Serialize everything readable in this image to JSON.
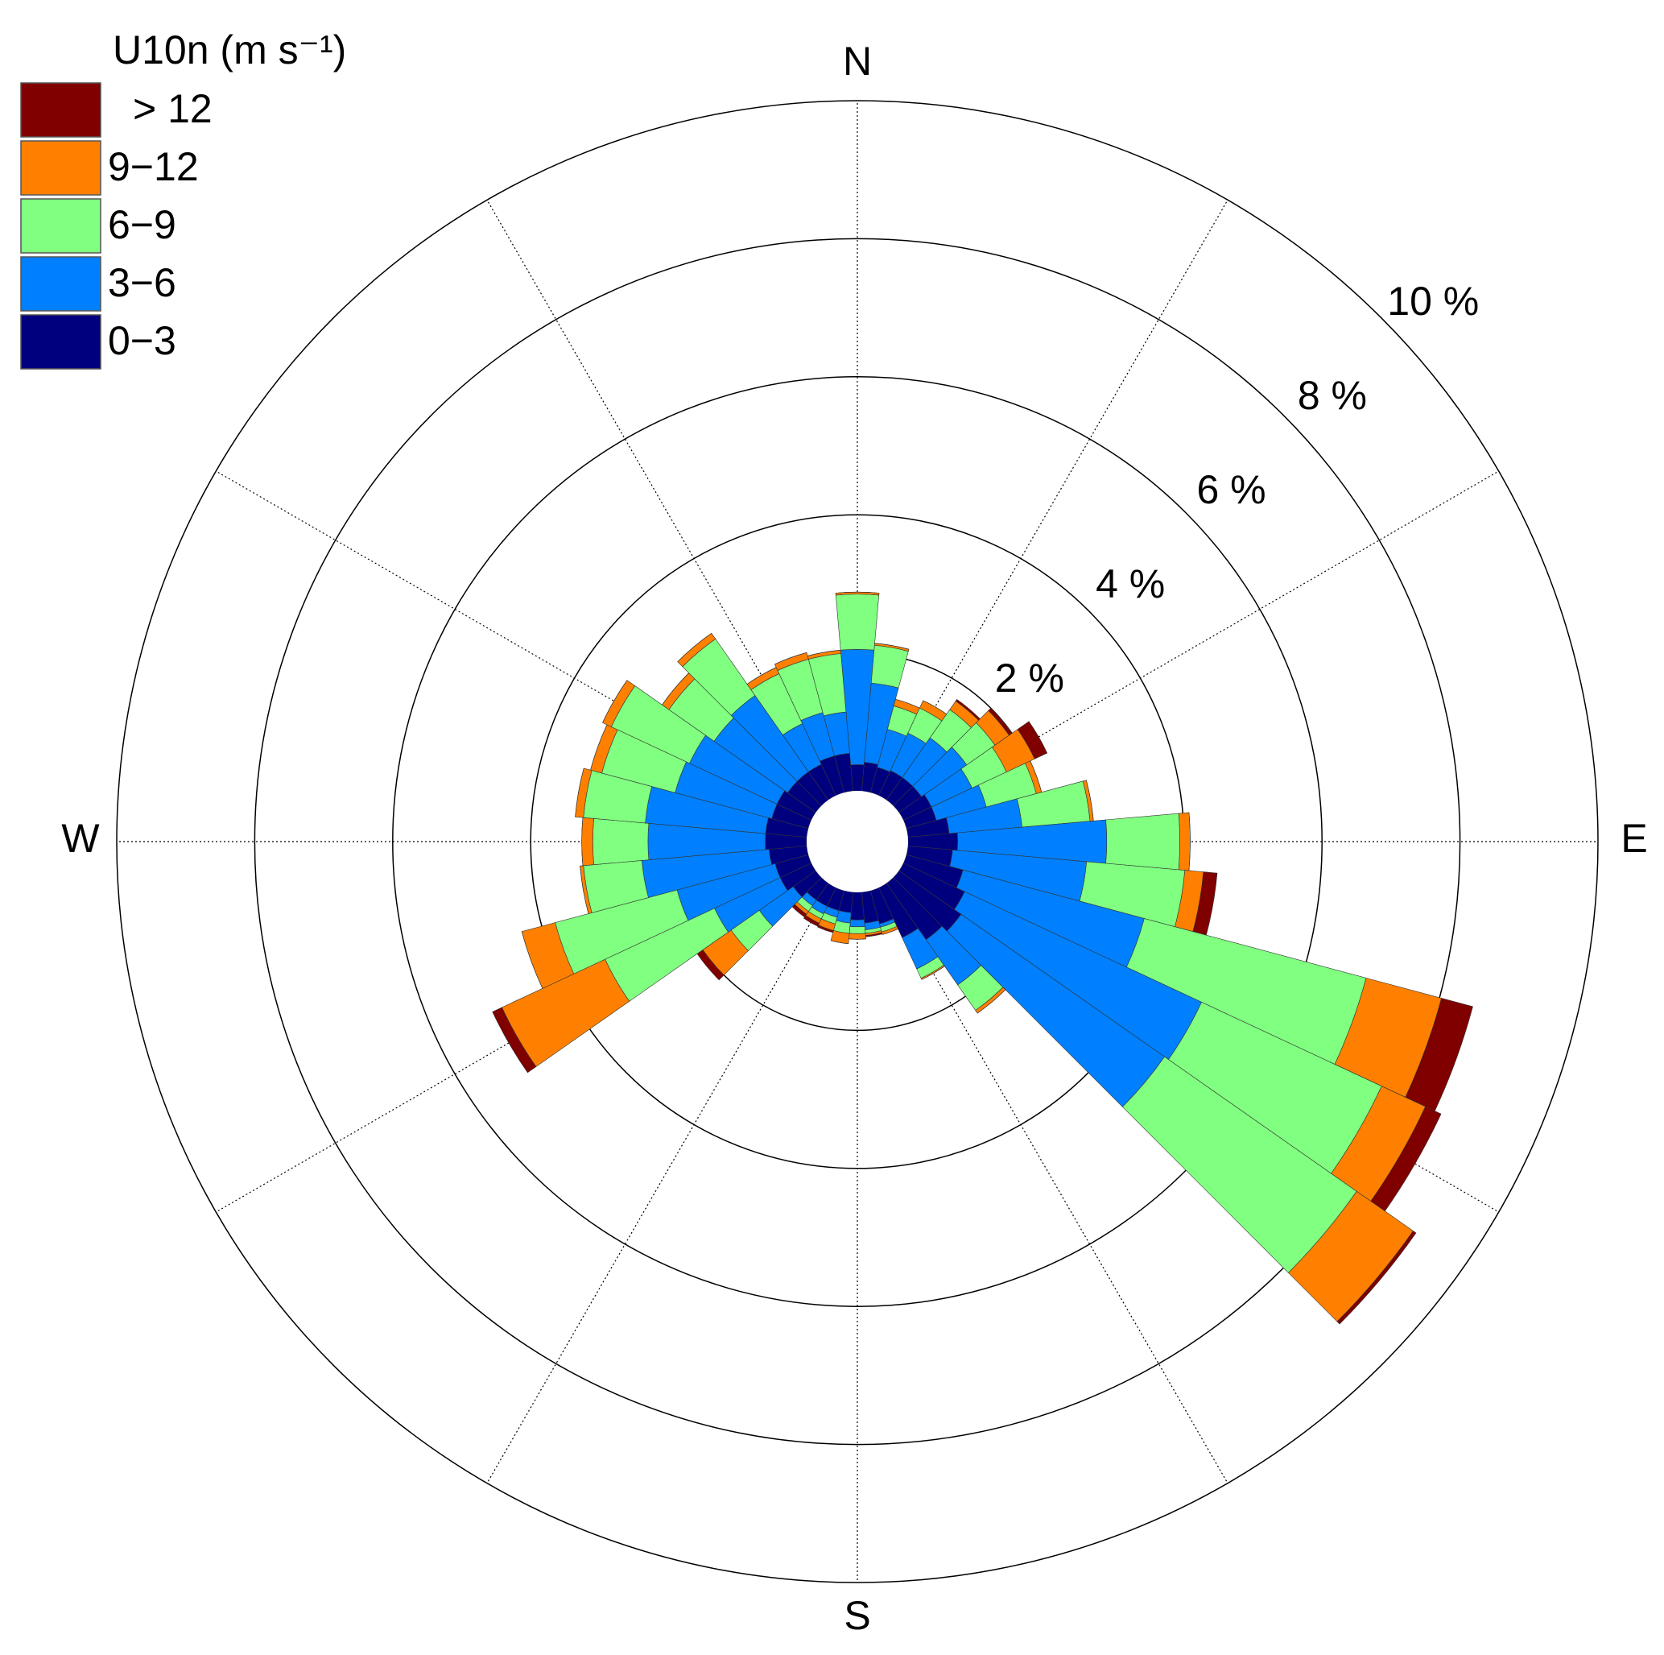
{
  "chart_data": {
    "type": "windrose",
    "legend_title": "U10n (m s⁻¹)",
    "legend": "upper left",
    "x": [
      0,
      10,
      20,
      30,
      40,
      50,
      60,
      70,
      80,
      90,
      100,
      110,
      120,
      130,
      140,
      150,
      160,
      170,
      180,
      190,
      200,
      210,
      220,
      230,
      240,
      250,
      260,
      270,
      280,
      290,
      300,
      310,
      320,
      330,
      340,
      350
    ],
    "series": [
      {
        "name": "0−3",
        "color": "#00007f",
        "values": [
          0.38,
          0.42,
          0.38,
          0.4,
          0.4,
          0.4,
          0.45,
          0.45,
          0.6,
          0.72,
          0.65,
          0.85,
          0.98,
          1.1,
          1.0,
          0.8,
          0.5,
          0.45,
          0.4,
          0.3,
          0.3,
          0.3,
          0.3,
          0.4,
          0.5,
          0.5,
          0.55,
          0.6,
          0.6,
          0.55,
          0.55,
          0.5,
          0.5,
          0.5,
          0.55,
          0.55
        ]
      },
      {
        "name": "3−6",
        "color": "#0080ff",
        "values": [
          1.67,
          1.15,
          0.57,
          0.6,
          0.7,
          0.8,
          0.65,
          0.75,
          1.06,
          2.16,
          1.95,
          2.72,
          3.79,
          3.6,
          0.8,
          0.5,
          0.05,
          0.1,
          0.1,
          0.15,
          0.1,
          0.12,
          0.1,
          0.6,
          1.05,
          1.47,
          1.85,
          1.7,
          1.75,
          1.45,
          1.4,
          1.3,
          1.35,
          0.65,
          0.65,
          0.6
        ]
      },
      {
        "name": "6−9",
        "color": "#80ff80",
        "values": [
          0.8,
          0.55,
          0.35,
          0.4,
          0.5,
          0.5,
          0.55,
          0.75,
          0.99,
          1.06,
          1.43,
          3.33,
          2.88,
          3.4,
          0.45,
          0.15,
          0.07,
          0.05,
          0.1,
          0.15,
          0.1,
          0.08,
          0.1,
          0.5,
          1.75,
          1.83,
          0.85,
          0.8,
          0.9,
          1.1,
          1.25,
          0.8,
          1.0,
          0.8,
          0.8,
          0.85
        ]
      },
      {
        "name": "9−12",
        "color": "#ff8000",
        "values": [
          0.03,
          0.03,
          0.1,
          0.12,
          0.15,
          0.25,
          0.45,
          0.08,
          0.05,
          0.15,
          0.27,
          1.13,
          0.7,
          1.0,
          0.05,
          0.02,
          0.04,
          0.03,
          0.08,
          0.15,
          0.1,
          0.07,
          0.05,
          0.5,
          1.65,
          0.5,
          0.05,
          0.16,
          0.12,
          0.17,
          0.14,
          0.12,
          0.1,
          0.1,
          0.1,
          0.05
        ]
      },
      {
        "name": "> 12",
        "color": "#800000",
        "values": [
          0,
          0,
          0,
          0,
          0.03,
          0.05,
          0.2,
          0,
          0,
          0,
          0.2,
          0.47,
          0.25,
          0.05,
          0,
          0,
          0,
          0.02,
          0,
          0,
          0.03,
          0.05,
          0.05,
          0.1,
          0.15,
          0,
          0,
          0,
          0,
          0,
          0,
          0,
          0,
          0,
          0,
          0
        ]
      }
    ],
    "rlim": [
      0,
      10
    ],
    "rticks": [
      {
        "value": 2,
        "label": "2 %"
      },
      {
        "value": 4,
        "label": "4 %"
      },
      {
        "value": 6,
        "label": "6 %"
      },
      {
        "value": 8,
        "label": "8 %"
      },
      {
        "value": 10,
        "label": "10 %"
      }
    ],
    "theta_ticks": [
      {
        "value": 0,
        "label": "N"
      },
      {
        "value": 90,
        "label": "E"
      },
      {
        "value": 180,
        "label": "S"
      },
      {
        "value": 270,
        "label": "W"
      }
    ]
  }
}
